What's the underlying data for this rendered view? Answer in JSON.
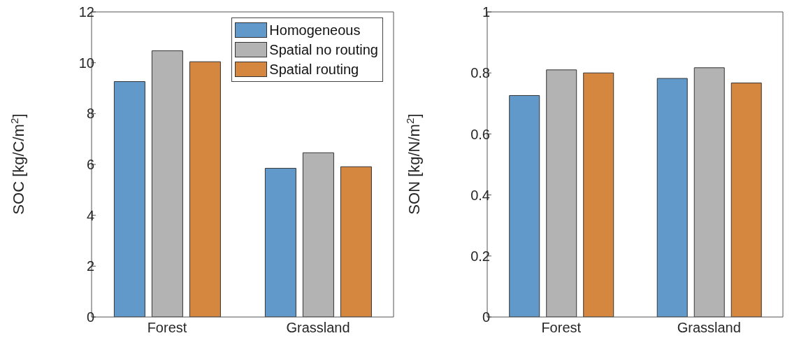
{
  "chart_data": [
    {
      "type": "bar",
      "categories": [
        "Forest",
        "Grassland"
      ],
      "ylabel": "SOC [kg/C/m$^{2}$]",
      "ylim": [
        0,
        12
      ],
      "yticks": [
        0,
        2,
        4,
        6,
        8,
        10,
        12
      ],
      "legend": "top right",
      "grid": false,
      "series": [
        {
          "name": "Homogeneous",
          "color": "#6199cb",
          "values": [
            9.26,
            5.85
          ]
        },
        {
          "name": "Spatial no routing",
          "color": "#b3b3b3",
          "values": [
            10.47,
            6.46
          ]
        },
        {
          "name": "Spatial routing",
          "color": "#d6873f",
          "values": [
            10.04,
            5.91
          ]
        }
      ]
    },
    {
      "type": "bar",
      "categories": [
        "Forest",
        "Grassland"
      ],
      "ylabel": "SON [kg/N/m$^{2}$]",
      "ylim": [
        0,
        1
      ],
      "yticks": [
        0,
        0.2,
        0.4,
        0.6,
        0.8,
        1
      ],
      "grid": false,
      "series": [
        {
          "color": "#6199cb",
          "values": [
            0.726,
            0.782
          ]
        },
        {
          "color": "#b3b3b3",
          "values": [
            0.81,
            0.817
          ]
        },
        {
          "color": "#d6873f",
          "values": [
            0.8,
            0.767
          ]
        }
      ]
    }
  ]
}
